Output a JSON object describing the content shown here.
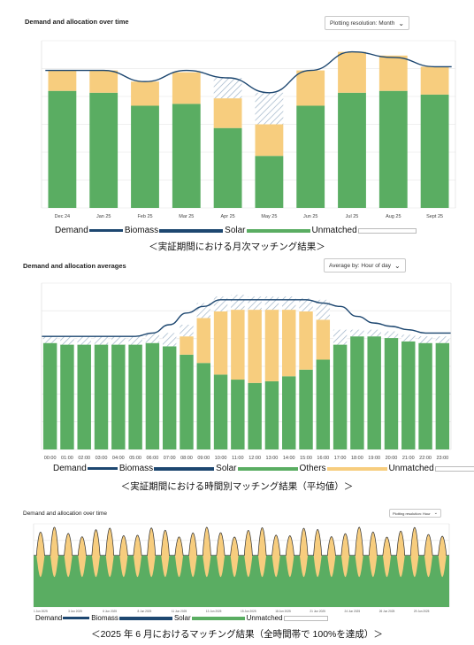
{
  "colors": {
    "demand": "#1d4770",
    "biomass": "#1d4770",
    "solar": "#5aad62",
    "others": "#f7cd7e",
    "unmatched_fill": "#ffffff",
    "unmatched_border": "#bbbbbb",
    "hatch": "#9fb4c8",
    "grid": "#ebebeb"
  },
  "panels": [
    {
      "title": "Demand and allocation over time",
      "control_label": "Plotting resolution: Month",
      "caption": "＜実証期間における月次マッチング結果＞",
      "legend": [
        {
          "label": "Demand",
          "key": "demand",
          "kind": "line"
        },
        {
          "label": "Biomass",
          "key": "biomass",
          "kind": "bar"
        },
        {
          "label": "Solar",
          "key": "solar",
          "kind": "bar"
        },
        {
          "label": "Unmatched",
          "key": "unmatched",
          "kind": "box"
        }
      ],
      "chart_data": {
        "type": "bar",
        "stacked": true,
        "categories": [
          "Dec 24",
          "Jan 25",
          "Feb 25",
          "Mar 25",
          "Apr 25",
          "May 25",
          "Jun 25",
          "Jul 25",
          "Aug 25",
          "Sept 25"
        ],
        "series": [
          {
            "name": "Solar",
            "values": [
              63,
              62,
              55,
              56,
              43,
              28,
              55,
              62,
              63,
              61
            ]
          },
          {
            "name": "Others",
            "values": [
              11,
              12,
              13,
              17,
              16,
              17,
              19,
              22,
              19,
              15
            ]
          },
          {
            "name": "Unmatched",
            "values": [
              0,
              0,
              0,
              0,
              11,
              17,
              0,
              0,
              0,
              0
            ]
          }
        ],
        "demand": [
          74,
          74,
          68,
          74,
          70,
          62,
          74,
          84,
          81,
          76
        ],
        "ylim": [
          0,
          90
        ],
        "grid": true
      }
    },
    {
      "title": "Demand and allocation averages",
      "control_label": "Average by: Hour of day",
      "caption": "＜実証期間における時間別マッチング結果（平均値）＞",
      "legend": [
        {
          "label": "Demand",
          "key": "demand",
          "kind": "line"
        },
        {
          "label": "Biomass",
          "key": "biomass",
          "kind": "bar"
        },
        {
          "label": "Solar",
          "key": "solar",
          "kind": "bar"
        },
        {
          "label": "Others",
          "key": "others",
          "kind": "bar"
        },
        {
          "label": "Unmatched",
          "key": "unmatched",
          "kind": "box"
        }
      ],
      "chart_data": {
        "type": "bar",
        "stacked": true,
        "categories": [
          "00:00",
          "01:00",
          "02:00",
          "03:00",
          "04:00",
          "05:00",
          "06:00",
          "07:00",
          "08:00",
          "09:00",
          "10:00",
          "11:00",
          "12:00",
          "13:00",
          "14:00",
          "15:00",
          "16:00",
          "17:00",
          "18:00",
          "19:00",
          "20:00",
          "21:00",
          "22:00",
          "23:00"
        ],
        "series": [
          {
            "name": "Solar",
            "values": [
              64,
              63,
              63,
              63,
              63,
              63,
              64,
              62,
              57,
              52,
              45,
              42,
              40,
              41,
              44,
              48,
              54,
              63,
              68,
              68,
              67,
              65,
              64,
              64
            ]
          },
          {
            "name": "Others",
            "values": [
              0,
              0,
              0,
              0,
              0,
              0,
              0,
              0,
              11,
              27,
              38,
              42,
              44,
              43,
              40,
              35,
              24,
              0,
              0,
              0,
              0,
              0,
              0,
              0
            ]
          },
          {
            "name": "Unmatched",
            "values": [
              4,
              5,
              5,
              5,
              5,
              5,
              6,
              8,
              7,
              9,
              9,
              9,
              8,
              8,
              8,
              8,
              12,
              9,
              4,
              4,
              4,
              4,
              4,
              4
            ]
          }
        ],
        "demand": [
          68,
          68,
          68,
          68,
          68,
          68,
          70,
          75,
          82,
          86,
          90,
          90,
          90,
          90,
          90,
          90,
          88,
          86,
          80,
          76,
          74,
          72,
          70,
          70
        ],
        "ylim": [
          0,
          100
        ],
        "grid": true
      }
    },
    {
      "title": "Demand and allocation over time",
      "control_label": "Plotting resolution: Hour",
      "caption": "＜2025 年 6 月におけるマッチング結果（全時間帯で 100%を達成）＞",
      "legend": [
        {
          "label": "Demand",
          "key": "demand",
          "kind": "line"
        },
        {
          "label": "Biomass",
          "key": "biomass",
          "kind": "bar"
        },
        {
          "label": "Solar",
          "key": "solar",
          "kind": "bar"
        },
        {
          "label": "Unmatched",
          "key": "unmatched",
          "kind": "box"
        }
      ],
      "chart_data": {
        "type": "area",
        "stacked": true,
        "x": [
          "1 Jun 2025",
          "3 Jun 2025",
          "6 Jun 2025",
          "8 Jun 2025",
          "11 Jun 2025",
          "13 Jun 2025",
          "15 Jun 2025",
          "18 Jun 2025",
          "21 Jun 2025",
          "24 Jun 2025",
          "26 Jun 2025",
          "29 Jun 2025"
        ],
        "days": 30,
        "base_level": 62,
        "peak_level": 96,
        "ylim": [
          0,
          100
        ],
        "grid": true
      }
    }
  ]
}
